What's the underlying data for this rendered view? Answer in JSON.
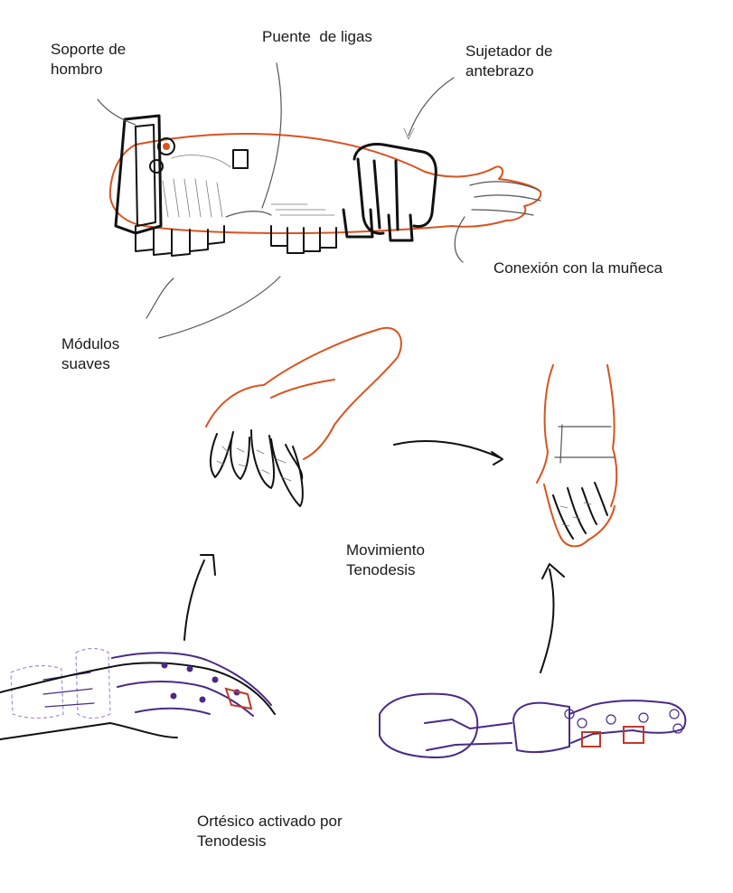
{
  "labels": {
    "soporte_hombro": [
      "Soporte de",
      "hombro"
    ],
    "puente_ligas": "Puente  de ligas",
    "sujetador_antebrazo": [
      "Sujetador de",
      "antebrazo"
    ],
    "conexion_muneca": "Conexión con la muñeca",
    "modulos_suaves": [
      "Módulos",
      "suaves"
    ],
    "movimiento_tenodesis": [
      "Movimiento",
      "Tenodesis"
    ],
    "ortesico_tenodesis": [
      "Ortésico activado por",
      "Tenodesis"
    ]
  },
  "colors": {
    "orange_outline": "#d9531e",
    "ink": "#111111",
    "pencil": "#555555",
    "purple": "#4a2a86",
    "lilac": "#a58cd9",
    "red": "#c0392b"
  }
}
